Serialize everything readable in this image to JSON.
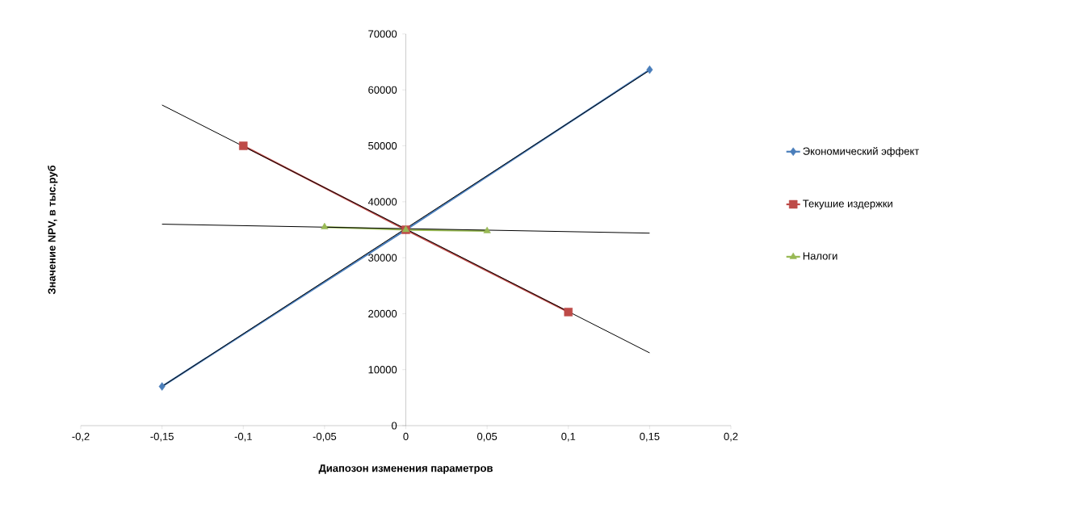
{
  "chart_data": {
    "type": "line",
    "xlabel": "Диапозон изменения параметров",
    "ylabel": "Значение NPV, в тыс.руб",
    "xlim": [
      -0.2,
      0.2
    ],
    "ylim": [
      0,
      70000
    ],
    "xticks": [
      {
        "value": -0.2,
        "label": "-0,2"
      },
      {
        "value": -0.15,
        "label": "-0,15"
      },
      {
        "value": -0.1,
        "label": "-0,1"
      },
      {
        "value": -0.05,
        "label": "-0,05"
      },
      0,
      {
        "value": 0.05,
        "label": "0,05"
      },
      {
        "value": 0.1,
        "label": "0,1"
      },
      {
        "value": 0.15,
        "label": "0,15"
      },
      {
        "value": 0.2,
        "label": "0,2"
      }
    ],
    "yticks": [
      0,
      10000,
      20000,
      30000,
      40000,
      50000,
      60000,
      70000
    ],
    "legend": "right",
    "line_style": "solid",
    "grid": false,
    "series": [
      {
        "name": "Экономический эффект",
        "color": "#4a7ebb",
        "marker": "diamond",
        "x": [
          -0.15,
          0,
          0.15
        ],
        "values": [
          7000,
          35000,
          63600
        ]
      },
      {
        "name": "Текушие издержки",
        "color": "#be4b48",
        "marker": "square",
        "x": [
          -0.1,
          0,
          0.1
        ],
        "values": [
          50000,
          35000,
          20300
        ]
      },
      {
        "name": "Налоги",
        "color": "#98b954",
        "marker": "triangle",
        "x": [
          -0.05,
          0,
          0.05
        ],
        "values": [
          35500,
          35000,
          34800
        ]
      },
      {
        "color": "#000000",
        "marker": "none",
        "x": [
          -0.15,
          0.15
        ],
        "values": [
          7000,
          63500
        ]
      },
      {
        "color": "#000000",
        "marker": "none",
        "x": [
          -0.15,
          0.15
        ],
        "values": [
          57300,
          13000
        ]
      },
      {
        "color": "#000000",
        "marker": "none",
        "x": [
          -0.15,
          0.15
        ],
        "values": [
          36000,
          34400
        ]
      }
    ]
  }
}
